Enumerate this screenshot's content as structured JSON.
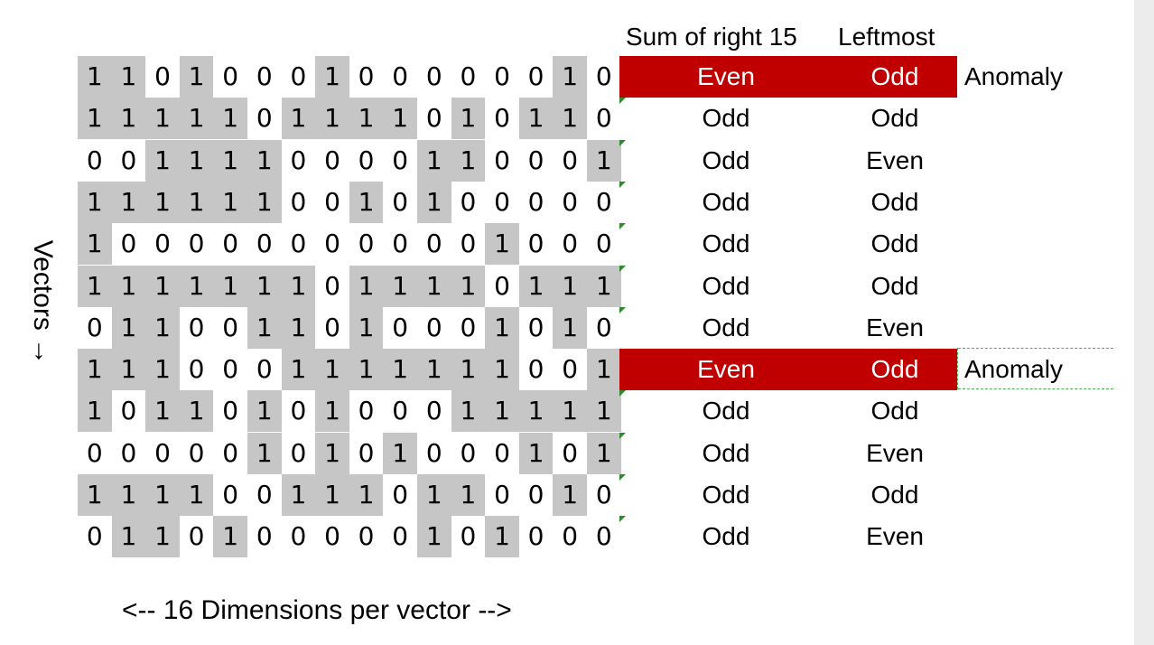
{
  "headers": {
    "sum": "Sum of right 15",
    "leftmost": "Leftmost"
  },
  "axis_labels": {
    "vectors": "Vectors →",
    "dimensions": "<-- 16 Dimensions per vector -->"
  },
  "anomaly_label": "Anomaly",
  "rows": [
    {
      "bits": [
        "1",
        "1",
        "0",
        "1",
        "0",
        "0",
        "0",
        "1",
        "0",
        "0",
        "0",
        "0",
        "0",
        "0",
        "1",
        "0"
      ],
      "sum": "Even",
      "leftmost": "Odd",
      "anomaly": true
    },
    {
      "bits": [
        "1",
        "1",
        "1",
        "1",
        "1",
        "0",
        "1",
        "1",
        "1",
        "1",
        "0",
        "1",
        "0",
        "1",
        "1",
        "0"
      ],
      "sum": "Odd",
      "leftmost": "Odd",
      "anomaly": false
    },
    {
      "bits": [
        "0",
        "0",
        "1",
        "1",
        "1",
        "1",
        "0",
        "0",
        "0",
        "0",
        "1",
        "1",
        "0",
        "0",
        "0",
        "1"
      ],
      "sum": "Odd",
      "leftmost": "Even",
      "anomaly": false
    },
    {
      "bits": [
        "1",
        "1",
        "1",
        "1",
        "1",
        "1",
        "0",
        "0",
        "1",
        "0",
        "1",
        "0",
        "0",
        "0",
        "0",
        "0"
      ],
      "sum": "Odd",
      "leftmost": "Odd",
      "anomaly": false
    },
    {
      "bits": [
        "1",
        "0",
        "0",
        "0",
        "0",
        "0",
        "0",
        "0",
        "0",
        "0",
        "0",
        "0",
        "1",
        "0",
        "0",
        "0"
      ],
      "sum": "Odd",
      "leftmost": "Odd",
      "anomaly": false
    },
    {
      "bits": [
        "1",
        "1",
        "1",
        "1",
        "1",
        "1",
        "1",
        "0",
        "1",
        "1",
        "1",
        "1",
        "0",
        "1",
        "1",
        "1"
      ],
      "sum": "Odd",
      "leftmost": "Odd",
      "anomaly": false
    },
    {
      "bits": [
        "0",
        "1",
        "1",
        "0",
        "0",
        "1",
        "1",
        "0",
        "1",
        "0",
        "0",
        "0",
        "1",
        "0",
        "1",
        "0"
      ],
      "sum": "Odd",
      "leftmost": "Even",
      "anomaly": false
    },
    {
      "bits": [
        "1",
        "1",
        "1",
        "0",
        "0",
        "0",
        "1",
        "1",
        "1",
        "1",
        "1",
        "1",
        "1",
        "0",
        "0",
        "1"
      ],
      "sum": "Even",
      "leftmost": "Odd",
      "anomaly": true
    },
    {
      "bits": [
        "1",
        "0",
        "1",
        "1",
        "0",
        "1",
        "0",
        "1",
        "0",
        "0",
        "0",
        "1",
        "1",
        "1",
        "1",
        "1"
      ],
      "sum": "Odd",
      "leftmost": "Odd",
      "anomaly": false
    },
    {
      "bits": [
        "0",
        "0",
        "0",
        "0",
        "0",
        "1",
        "0",
        "1",
        "0",
        "1",
        "0",
        "0",
        "0",
        "1",
        "0",
        "1"
      ],
      "sum": "Odd",
      "leftmost": "Even",
      "anomaly": false
    },
    {
      "bits": [
        "1",
        "1",
        "1",
        "1",
        "0",
        "0",
        "1",
        "1",
        "1",
        "0",
        "1",
        "1",
        "0",
        "0",
        "1",
        "0"
      ],
      "sum": "Odd",
      "leftmost": "Odd",
      "anomaly": false
    },
    {
      "bits": [
        "0",
        "1",
        "1",
        "0",
        "1",
        "0",
        "0",
        "0",
        "0",
        "0",
        "1",
        "0",
        "1",
        "0",
        "0",
        "0"
      ],
      "sum": "Odd",
      "leftmost": "Even",
      "anomaly": false
    }
  ],
  "colors": {
    "highlight_cell": "#c6c6c6",
    "anomaly_fill": "#c00000",
    "marker": "#2e8b2e"
  }
}
